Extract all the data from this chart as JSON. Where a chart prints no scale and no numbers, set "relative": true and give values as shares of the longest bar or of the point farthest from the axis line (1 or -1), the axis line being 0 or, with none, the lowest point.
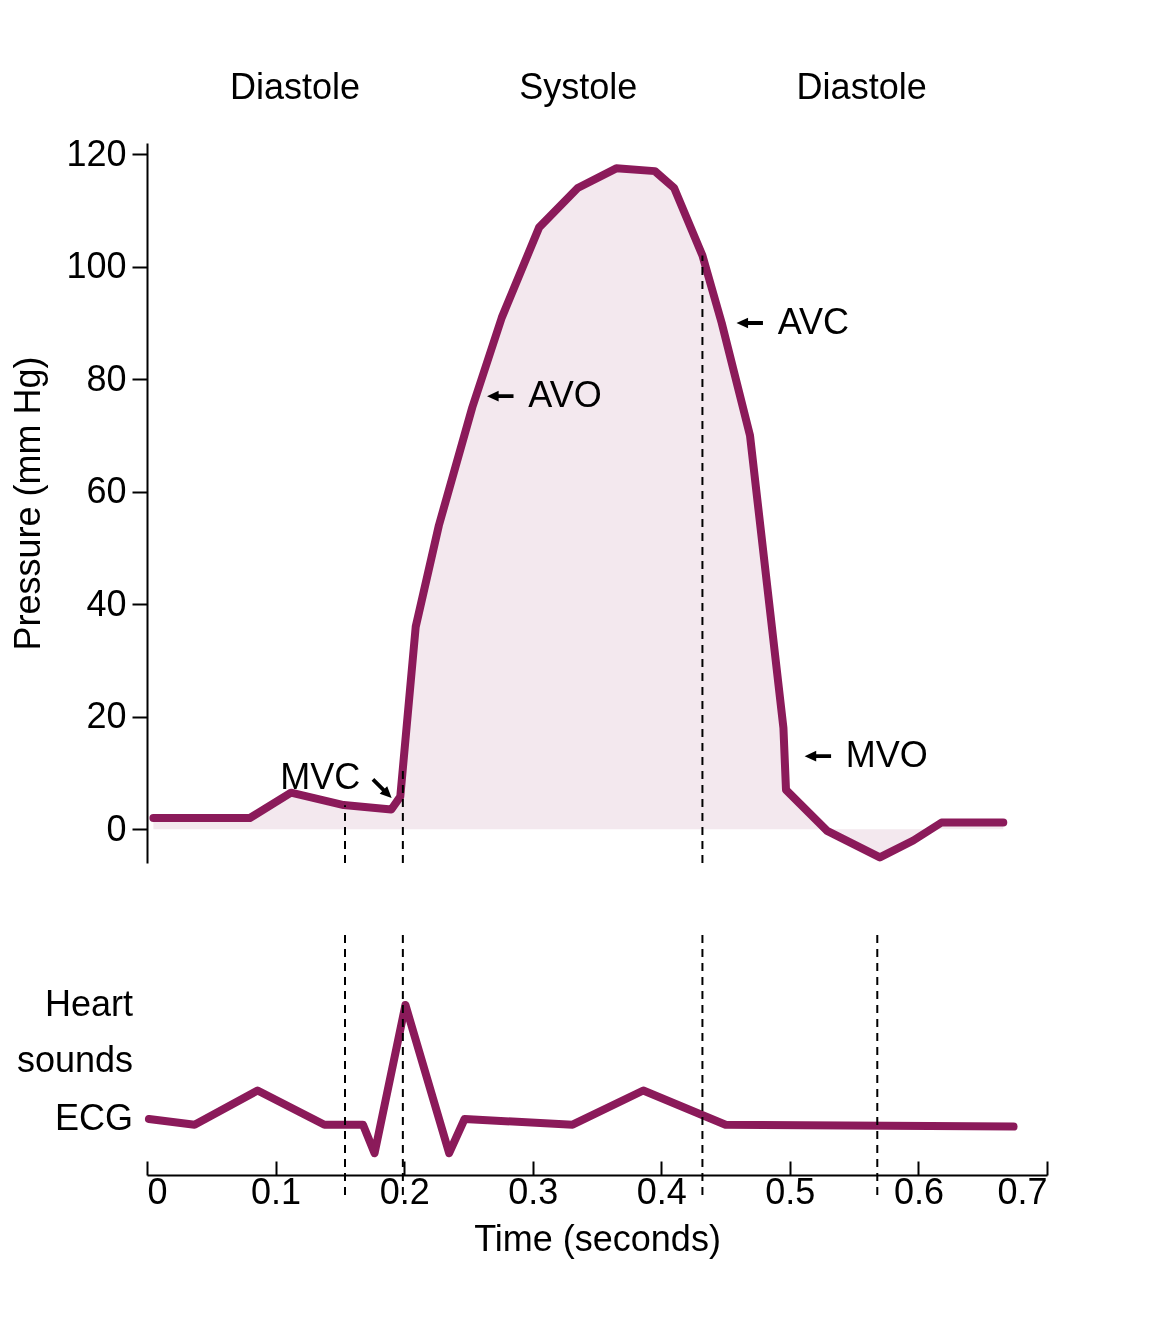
{
  "chart_data": [
    {
      "type": "area",
      "ylabel": "Pressure (mm Hg)",
      "tick_labels": "y",
      "ylim": [
        -6,
        122
      ],
      "yticks": [
        0,
        20,
        40,
        60,
        80,
        100,
        120
      ],
      "xlim": [
        0,
        0.7
      ],
      "grid": false,
      "series": [
        {
          "color": "#8b1a5a",
          "x": [
            0.005,
            0.08,
            0.112,
            0.153,
            0.19,
            0.197,
            0.209,
            0.227,
            0.253,
            0.276,
            0.305,
            0.335,
            0.365,
            0.395,
            0.41,
            0.432,
            0.447,
            0.469,
            0.495,
            0.497,
            0.529,
            0.57,
            0.596,
            0.618,
            0.666
          ],
          "values": [
            2,
            2,
            6.5,
            4.3,
            3.5,
            5.8,
            36,
            54,
            75,
            91,
            107,
            114,
            117.5,
            117,
            114,
            102,
            90,
            70,
            18,
            7,
            -0.3,
            -5,
            -2,
            1.2,
            1.2
          ]
        }
      ],
      "ref_lines": [
        {
          "axis": "x",
          "value": 0.154,
          "line_style": "dashed",
          "color": "#000000"
        },
        {
          "axis": "x",
          "value": 0.199,
          "line_style": "dashed",
          "color": "#000000"
        },
        {
          "axis": "x",
          "value": 0.432,
          "line_style": "dashed",
          "color": "#000000"
        }
      ],
      "annotations": [
        "Diastole",
        "Systole",
        "Diastole",
        {
          "text": "MVC",
          "x": 0.197,
          "y": 4
        },
        {
          "text": "AVO",
          "x": 0.253,
          "y": 77
        },
        {
          "text": "AVC",
          "x": 0.447,
          "y": 90
        },
        {
          "text": "MVO",
          "x": 0.5,
          "y": 13
        }
      ]
    },
    {
      "type": "line",
      "relative": true,
      "xlabel": "Time (seconds)",
      "tick_labels": "x",
      "xlim": [
        0,
        0.7
      ],
      "xticks": [
        0,
        0.1,
        0.2,
        0.3,
        0.4,
        0.5,
        0.6,
        0.7
      ],
      "grid": false,
      "series": [
        {
          "color": "#8b1a5a",
          "x": [
            0.0015,
            0.037,
            0.086,
            0.138,
            0.168,
            0.177,
            0.201,
            0.235,
            0.247,
            0.331,
            0.386,
            0.45,
            0.674
          ],
          "values": [
            0.4,
            0.37,
            0.55,
            0.37,
            0.37,
            0.22,
            1,
            0.22,
            0.4,
            0.37,
            0.55,
            0.37,
            0.36
          ]
        }
      ],
      "ref_lines": [
        {
          "axis": "x",
          "value": 0.154,
          "line_style": "dashed",
          "color": "#000000"
        },
        {
          "axis": "x",
          "value": 0.199,
          "line_style": "dashed",
          "color": "#000000"
        },
        {
          "axis": "x",
          "value": 0.432,
          "line_style": "dashed",
          "color": "#000000"
        },
        {
          "axis": "x",
          "value": 0.568,
          "line_style": "dashed",
          "color": "#000000"
        }
      ],
      "annotations": [
        "Heart sounds",
        "ECG"
      ]
    }
  ]
}
